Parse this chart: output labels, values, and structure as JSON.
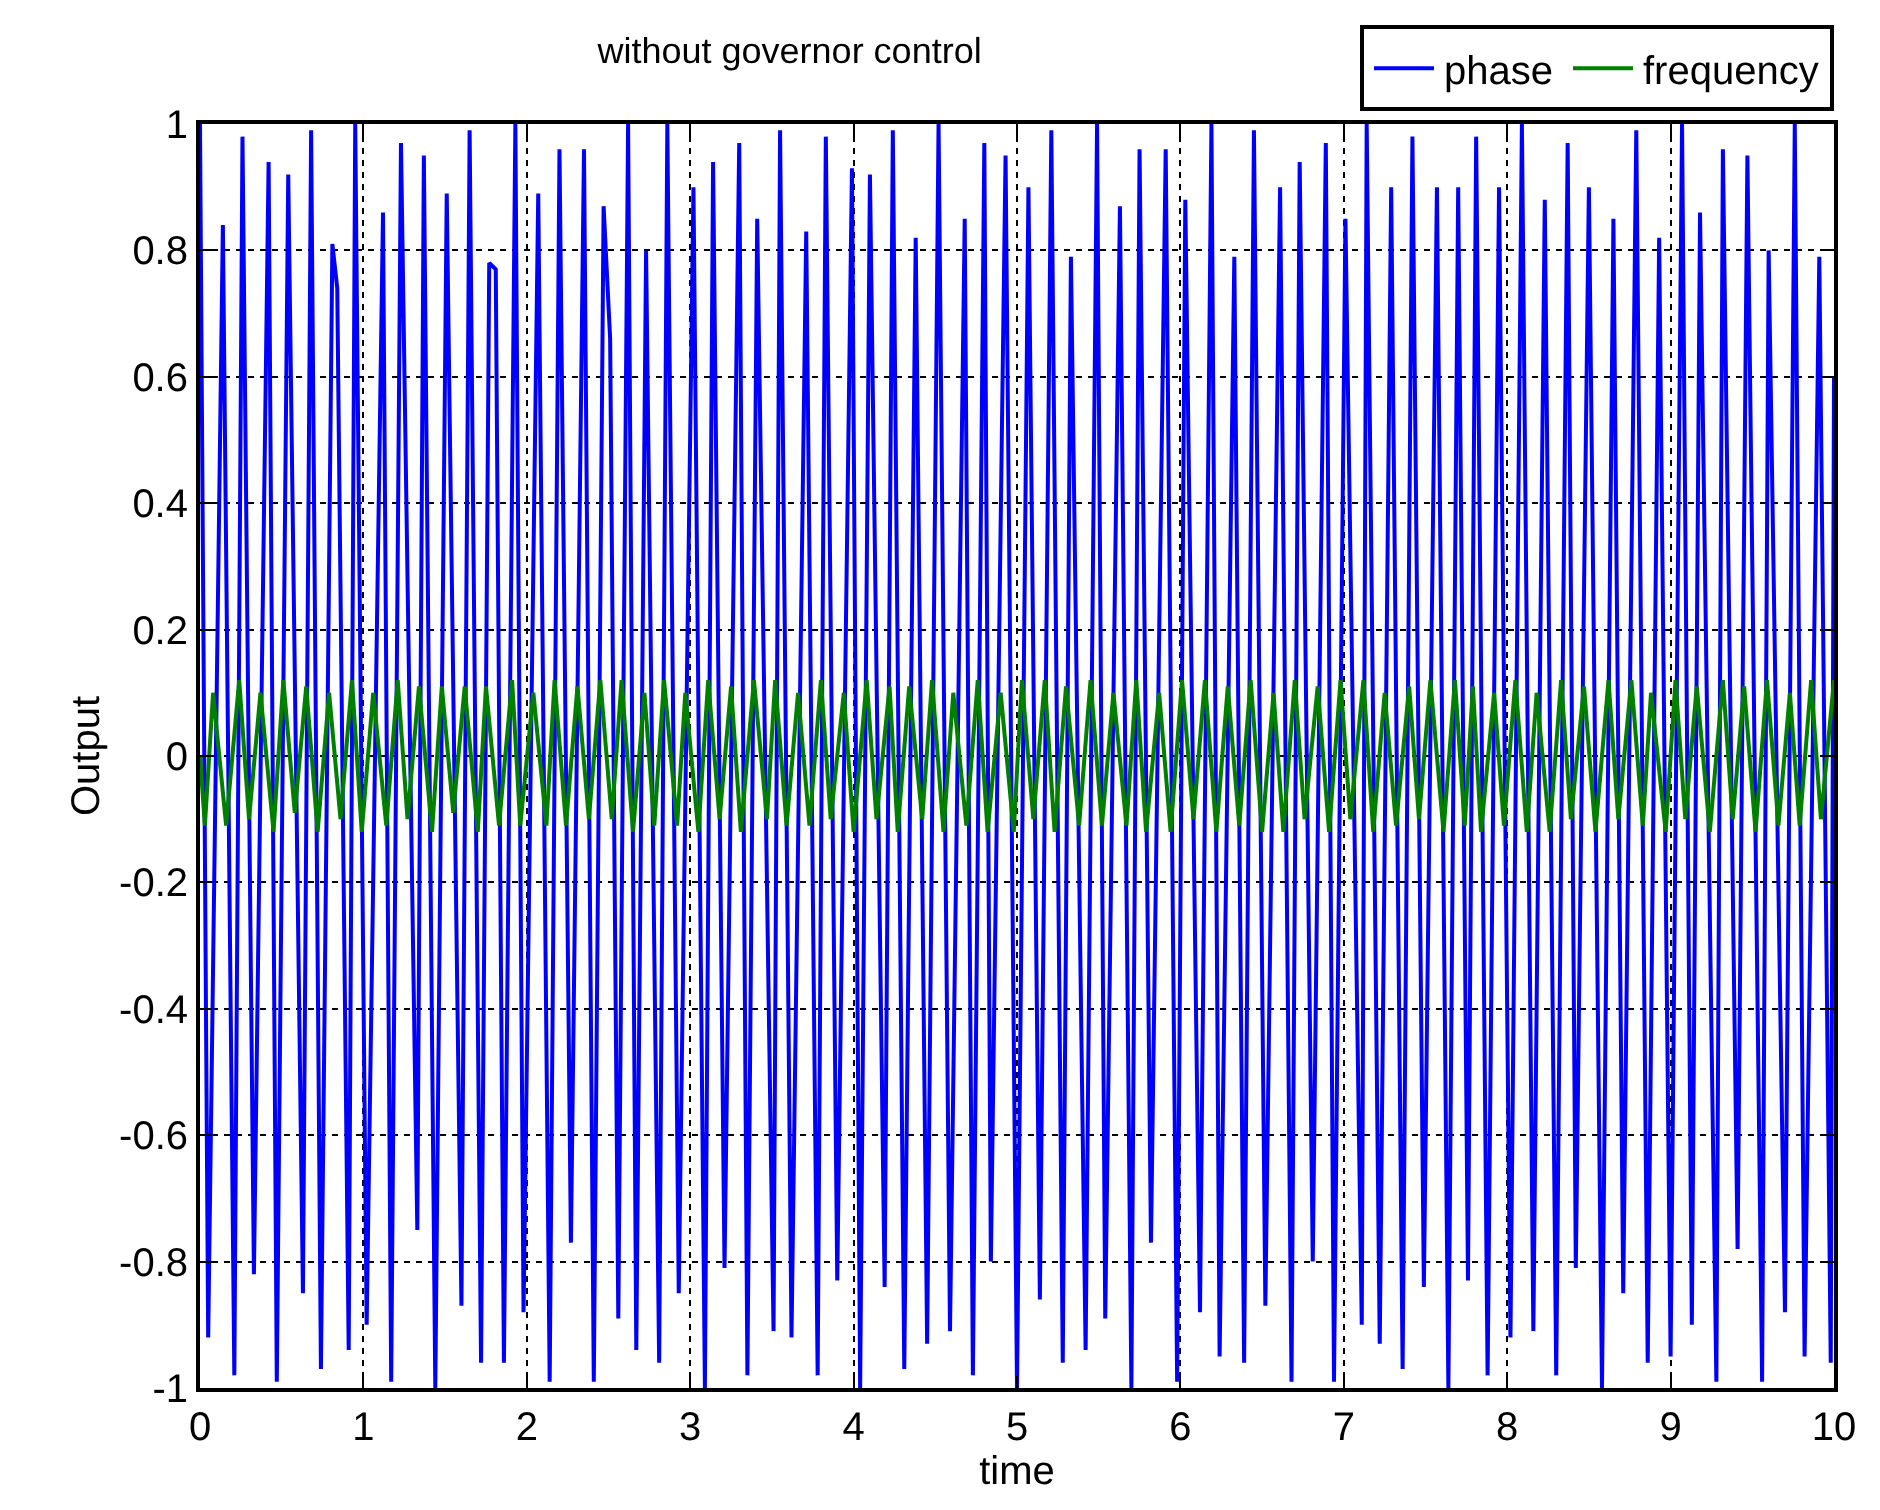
{
  "chart_data": {
    "type": "line",
    "title": "without governor control",
    "xlabel": "time",
    "ylabel": "Output",
    "xlim": [
      0,
      10
    ],
    "ylim": [
      -1,
      1
    ],
    "xticks": [
      0,
      1,
      2,
      3,
      4,
      5,
      6,
      7,
      8,
      9,
      10
    ],
    "yticks": [
      -1,
      -0.8,
      -0.6,
      -0.4,
      -0.2,
      0,
      0.2,
      0.4,
      0.6,
      0.8,
      1
    ],
    "grid": true,
    "legend": "top right",
    "line_style": "solid",
    "marker": "none",
    "series": [
      {
        "name": "phase",
        "color": "#0000ff",
        "x": [
          0,
          0.05,
          0.14,
          0.21,
          0.26,
          0.33,
          0.42,
          0.47,
          0.54,
          0.63,
          0.68,
          0.74,
          0.81,
          0.84,
          0.91,
          0.95,
          1.02,
          1.12,
          1.17,
          1.23,
          1.33,
          1.37,
          1.44,
          1.51,
          1.6,
          1.65,
          1.72,
          1.77,
          1.81,
          1.86,
          1.93,
          1.98,
          2.07,
          2.14,
          2.2,
          2.27,
          2.35,
          2.41,
          2.47,
          2.51,
          2.56,
          2.62,
          2.67,
          2.73,
          2.81,
          2.86,
          2.93,
          3.02,
          3.09,
          3.14,
          3.21,
          3.3,
          3.35,
          3.41,
          3.51,
          3.55,
          3.62,
          3.71,
          3.78,
          3.83,
          3.9,
          3.99,
          4.04,
          4.1,
          4.19,
          4.24,
          4.31,
          4.38,
          4.45,
          4.52,
          4.59,
          4.68,
          4.73,
          4.8,
          4.84,
          4.93,
          5,
          5.07,
          5.14,
          5.21,
          5.28,
          5.33,
          5.42,
          5.49,
          5.54,
          5.63,
          5.7,
          5.75,
          5.82,
          5.91,
          5.98,
          6.03,
          6.12,
          6.19,
          6.24,
          6.33,
          6.39,
          6.45,
          6.52,
          6.61,
          6.68,
          6.73,
          6.81,
          6.89,
          6.94,
          7.01,
          7.11,
          7.14,
          7.22,
          7.29,
          7.36,
          7.42,
          7.49,
          7.57,
          7.64,
          7.7,
          7.76,
          7.81,
          7.88,
          7.95,
          8.02,
          8.09,
          8.16,
          8.23,
          8.3,
          8.37,
          8.42,
          8.5,
          8.58,
          8.65,
          8.71,
          8.79,
          8.86,
          8.93,
          9,
          9.07,
          9.13,
          9.18,
          9.28,
          9.32,
          9.41,
          9.47,
          9.56,
          9.6,
          9.7,
          9.76,
          9.82,
          9.91,
          9.98,
          10
        ],
        "values": [
          1,
          -0.92,
          0.84,
          -0.98,
          0.98,
          -0.82,
          0.94,
          -0.99,
          0.92,
          -0.85,
          0.99,
          -0.97,
          0.81,
          0.74,
          -0.94,
          1,
          -0.9,
          0.86,
          -0.99,
          0.97,
          -0.75,
          0.95,
          -1,
          0.89,
          -0.87,
          0.99,
          -0.96,
          0.78,
          0.77,
          -0.96,
          1,
          -0.88,
          0.89,
          -0.99,
          0.96,
          -0.77,
          0.96,
          -0.99,
          0.87,
          0.66,
          -0.89,
          1,
          -0.94,
          0.8,
          -0.96,
          1,
          -0.85,
          0.9,
          -1,
          0.94,
          -0.81,
          0.97,
          -0.98,
          0.85,
          -0.91,
          0.99,
          -0.92,
          0.83,
          -0.98,
          0.98,
          -0.83,
          0.93,
          -1,
          0.92,
          -0.84,
          0.99,
          -0.97,
          0.82,
          -0.93,
          1,
          -0.91,
          0.85,
          -0.98,
          0.97,
          -0.8,
          0.95,
          -1,
          0.9,
          -0.86,
          0.99,
          -0.96,
          0.79,
          -0.94,
          1,
          -0.89,
          0.87,
          -1,
          0.96,
          -0.77,
          0.96,
          -0.99,
          0.88,
          -0.88,
          1,
          -0.95,
          0.79,
          -0.96,
          0.99,
          -0.87,
          0.9,
          -0.99,
          0.94,
          -0.8,
          0.97,
          -0.99,
          0.85,
          -0.9,
          1,
          -0.93,
          0.9,
          -0.97,
          0.98,
          -0.84,
          0.9,
          -1,
          0.9,
          -0.83,
          0.98,
          -0.98,
          0.9,
          -0.92,
          1,
          -0.91,
          0.88,
          -0.98,
          0.97,
          -0.81,
          0.9,
          -1,
          0.85,
          -0.85,
          0.99,
          -0.96,
          0.82,
          -0.95,
          1,
          -0.9,
          0.86,
          -0.99,
          0.96,
          -0.78,
          0.95,
          -0.99,
          0.8,
          -0.88,
          1,
          -0.95,
          0.79,
          -0.96,
          0.6
        ]
      },
      {
        "name": "frequency",
        "color": "#008000",
        "x": [
          0,
          0.03,
          0.08,
          0.16,
          0.24,
          0.3,
          0.37,
          0.45,
          0.51,
          0.58,
          0.65,
          0.72,
          0.79,
          0.86,
          0.93,
          0.99,
          1.06,
          1.14,
          1.21,
          1.27,
          1.34,
          1.42,
          1.48,
          1.55,
          1.62,
          1.7,
          1.75,
          1.83,
          1.91,
          1.96,
          2.04,
          2.12,
          2.17,
          2.24,
          2.31,
          2.38,
          2.45,
          2.52,
          2.58,
          2.65,
          2.72,
          2.78,
          2.84,
          2.92,
          2.97,
          3.05,
          3.11,
          3.18,
          3.25,
          3.31,
          3.39,
          3.47,
          3.52,
          3.59,
          3.66,
          3.73,
          3.8,
          3.86,
          3.94,
          4,
          4.08,
          4.14,
          4.22,
          4.27,
          4.34,
          4.42,
          4.48,
          4.55,
          4.61,
          4.69,
          4.76,
          4.82,
          4.9,
          4.98,
          5.03,
          5.1,
          5.17,
          5.23,
          5.3,
          5.38,
          5.45,
          5.52,
          5.59,
          5.67,
          5.73,
          5.79,
          5.87,
          5.94,
          6.01,
          6.08,
          6.15,
          6.22,
          6.29,
          6.36,
          6.43,
          6.5,
          6.57,
          6.63,
          6.7,
          6.76,
          6.84,
          6.91,
          6.98,
          7.04,
          7.12,
          7.18,
          7.25,
          7.32,
          7.4,
          7.46,
          7.53,
          7.61,
          7.68,
          7.74,
          7.79,
          7.84,
          7.92,
          7.98,
          8.05,
          8.12,
          8.18,
          8.26,
          8.33,
          8.39,
          8.47,
          8.54,
          8.62,
          8.68,
          8.76,
          8.83,
          8.88,
          8.97,
          9.03,
          9.09,
          9.16,
          9.24,
          9.32,
          9.38,
          9.45,
          9.52,
          9.59,
          9.66,
          9.73,
          9.79,
          9.86,
          9.92,
          10
        ],
        "values": [
          0,
          -0.11,
          0.1,
          -0.11,
          0.12,
          -0.1,
          0.1,
          -0.12,
          0.12,
          -0.09,
          0.11,
          -0.12,
          0.1,
          -0.1,
          0.12,
          -0.12,
          0.1,
          -0.11,
          0.12,
          -0.1,
          0.11,
          -0.12,
          0.11,
          -0.09,
          0.11,
          -0.12,
          0.11,
          -0.11,
          0.12,
          -0.11,
          0.1,
          -0.11,
          0.12,
          -0.11,
          0.11,
          -0.1,
          0.12,
          -0.1,
          0.12,
          -0.12,
          0.1,
          -0.11,
          0.12,
          -0.11,
          0.1,
          -0.12,
          0.12,
          -0.1,
          0.11,
          -0.12,
          0.12,
          -0.1,
          0.12,
          -0.11,
          0.1,
          -0.11,
          0.12,
          -0.1,
          0.1,
          -0.12,
          0.12,
          -0.1,
          0.11,
          -0.12,
          0.11,
          -0.1,
          0.12,
          -0.12,
          0.1,
          -0.11,
          0.12,
          -0.12,
          0.1,
          -0.12,
          0.12,
          -0.1,
          0.12,
          -0.12,
          0.11,
          -0.11,
          0.12,
          -0.11,
          0.1,
          -0.11,
          0.12,
          -0.12,
          0.1,
          -0.12,
          0.12,
          -0.1,
          0.12,
          -0.12,
          0.11,
          -0.11,
          0.12,
          -0.12,
          0.1,
          -0.12,
          0.12,
          -0.1,
          0.11,
          -0.12,
          0.12,
          -0.1,
          0.12,
          -0.12,
          0.1,
          -0.11,
          0.11,
          -0.1,
          0.12,
          -0.12,
          0.12,
          -0.11,
          0.11,
          -0.12,
          0.1,
          -0.11,
          0.12,
          -0.12,
          0.1,
          -0.12,
          0.12,
          -0.1,
          0.11,
          -0.12,
          0.12,
          -0.1,
          0.12,
          -0.11,
          0.1,
          -0.12,
          0.12,
          -0.1,
          0.11,
          -0.12,
          0.12,
          -0.1,
          0.11,
          -0.12,
          0.12,
          -0.11,
          0.1,
          -0.11,
          0.12,
          -0.1,
          0.12
        ]
      }
    ]
  }
}
